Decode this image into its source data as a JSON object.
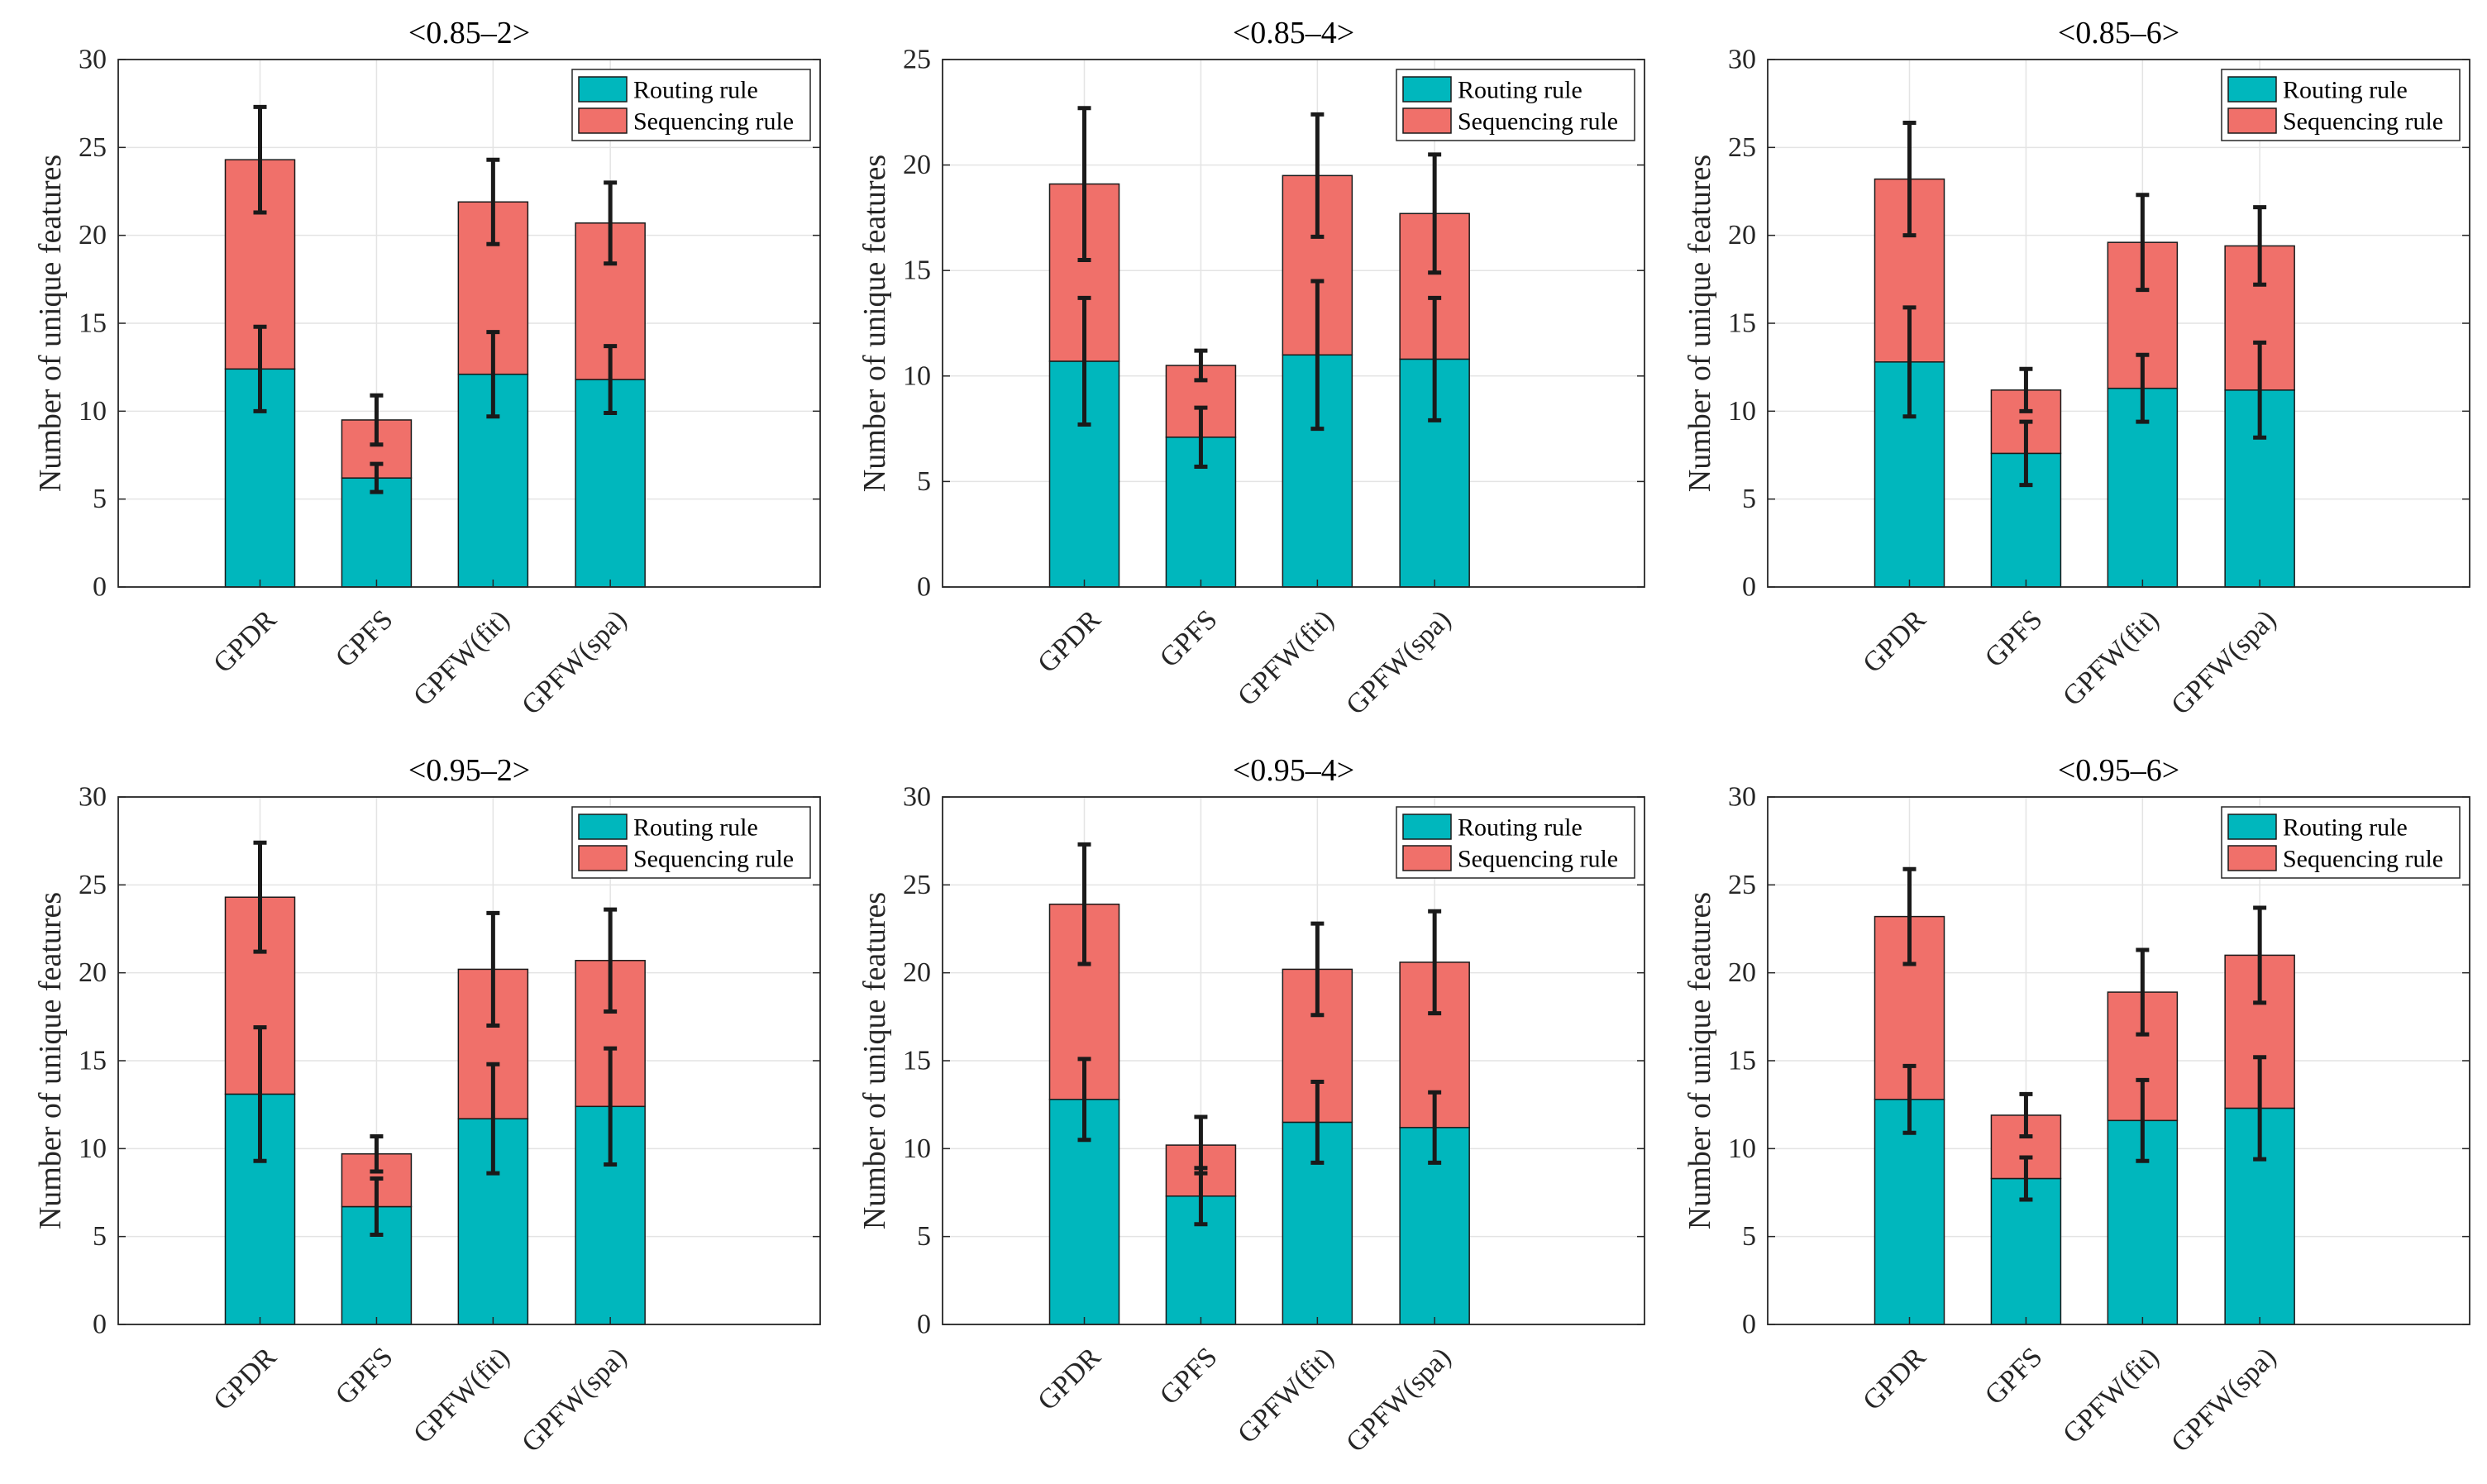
{
  "figure": {
    "colors": {
      "routing": "#00b7bd",
      "sequencing": "#f0706a",
      "error_bar": "#1a1a1a",
      "grid": "#e4e4e4",
      "axis": "#262626"
    }
  },
  "chart_data": [
    {
      "type": "bar",
      "stacked": true,
      "title": "<0.85–2>",
      "ylabel": "Number of unique features",
      "xlabel": "",
      "ylim": [
        0,
        30
      ],
      "yticks": [
        0,
        5,
        10,
        15,
        20,
        25,
        30
      ],
      "grid": true,
      "legend_position": "top-right",
      "categories": [
        "GPDR",
        "GPFS",
        "GPFW(fit)",
        "GPFW(spa)"
      ],
      "series": [
        {
          "name": "Routing rule",
          "values": [
            12.4,
            6.2,
            12.1,
            11.8
          ],
          "err": [
            2.4,
            0.8,
            2.4,
            1.9
          ]
        },
        {
          "name": "Sequencing rule",
          "values": [
            11.9,
            3.3,
            9.8,
            8.9
          ],
          "err": [
            3.0,
            1.4,
            2.4,
            2.3
          ]
        }
      ]
    },
    {
      "type": "bar",
      "stacked": true,
      "title": "<0.85–4>",
      "ylabel": "Number of unique features",
      "xlabel": "",
      "ylim": [
        0,
        25
      ],
      "yticks": [
        0,
        5,
        10,
        15,
        20,
        25
      ],
      "grid": true,
      "legend_position": "top-right",
      "categories": [
        "GPDR",
        "GPFS",
        "GPFW(fit)",
        "GPFW(spa)"
      ],
      "series": [
        {
          "name": "Routing rule",
          "values": [
            10.7,
            7.1,
            11.0,
            10.8
          ],
          "err": [
            3.0,
            1.4,
            3.5,
            2.9
          ]
        },
        {
          "name": "Sequencing rule",
          "values": [
            8.4,
            3.4,
            8.5,
            6.9
          ],
          "err": [
            3.6,
            0.7,
            2.9,
            2.8
          ]
        }
      ]
    },
    {
      "type": "bar",
      "stacked": true,
      "title": "<0.85–6>",
      "ylabel": "Number of unique features",
      "xlabel": "",
      "ylim": [
        0,
        30
      ],
      "yticks": [
        0,
        5,
        10,
        15,
        20,
        25,
        30
      ],
      "grid": true,
      "legend_position": "top-right",
      "categories": [
        "GPDR",
        "GPFS",
        "GPFW(fit)",
        "GPFW(spa)"
      ],
      "series": [
        {
          "name": "Routing rule",
          "values": [
            12.8,
            7.6,
            11.3,
            11.2
          ],
          "err": [
            3.1,
            1.8,
            1.9,
            2.7
          ]
        },
        {
          "name": "Sequencing rule",
          "values": [
            10.4,
            3.6,
            8.3,
            8.2
          ],
          "err": [
            3.2,
            1.2,
            2.7,
            2.2
          ]
        }
      ]
    },
    {
      "type": "bar",
      "stacked": true,
      "title": "<0.95–2>",
      "ylabel": "Number of unique features",
      "xlabel": "",
      "ylim": [
        0,
        30
      ],
      "yticks": [
        0,
        5,
        10,
        15,
        20,
        25,
        30
      ],
      "grid": true,
      "legend_position": "top-right",
      "categories": [
        "GPDR",
        "GPFS",
        "GPFW(fit)",
        "GPFW(spa)"
      ],
      "series": [
        {
          "name": "Routing rule",
          "values": [
            13.1,
            6.7,
            11.7,
            12.4
          ],
          "err": [
            3.8,
            1.6,
            3.1,
            3.3
          ]
        },
        {
          "name": "Sequencing rule",
          "values": [
            11.2,
            3.0,
            8.5,
            8.3
          ],
          "err": [
            3.1,
            1.0,
            3.2,
            2.9
          ]
        }
      ]
    },
    {
      "type": "bar",
      "stacked": true,
      "title": "<0.95–4>",
      "ylabel": "Number of unique features",
      "xlabel": "",
      "ylim": [
        0,
        30
      ],
      "yticks": [
        0,
        5,
        10,
        15,
        20,
        25,
        30
      ],
      "grid": true,
      "legend_position": "top-right",
      "categories": [
        "GPDR",
        "GPFS",
        "GPFW(fit)",
        "GPFW(spa)"
      ],
      "series": [
        {
          "name": "Routing rule",
          "values": [
            12.8,
            7.3,
            11.5,
            11.2
          ],
          "err": [
            2.3,
            1.6,
            2.3,
            2.0
          ]
        },
        {
          "name": "Sequencing rule",
          "values": [
            11.1,
            2.9,
            8.7,
            9.4
          ],
          "err": [
            3.4,
            1.6,
            2.6,
            2.9
          ]
        }
      ]
    },
    {
      "type": "bar",
      "stacked": true,
      "title": "<0.95–6>",
      "ylabel": "Number of unique features",
      "xlabel": "",
      "ylim": [
        0,
        30
      ],
      "yticks": [
        0,
        5,
        10,
        15,
        20,
        25,
        30
      ],
      "grid": true,
      "legend_position": "top-right",
      "categories": [
        "GPDR",
        "GPFS",
        "GPFW(fit)",
        "GPFW(spa)"
      ],
      "series": [
        {
          "name": "Routing rule",
          "values": [
            12.8,
            8.3,
            11.6,
            12.3
          ],
          "err": [
            1.9,
            1.2,
            2.3,
            2.9
          ]
        },
        {
          "name": "Sequencing rule",
          "values": [
            10.4,
            3.6,
            7.3,
            8.7
          ],
          "err": [
            2.7,
            1.2,
            2.4,
            2.7
          ]
        }
      ]
    }
  ]
}
